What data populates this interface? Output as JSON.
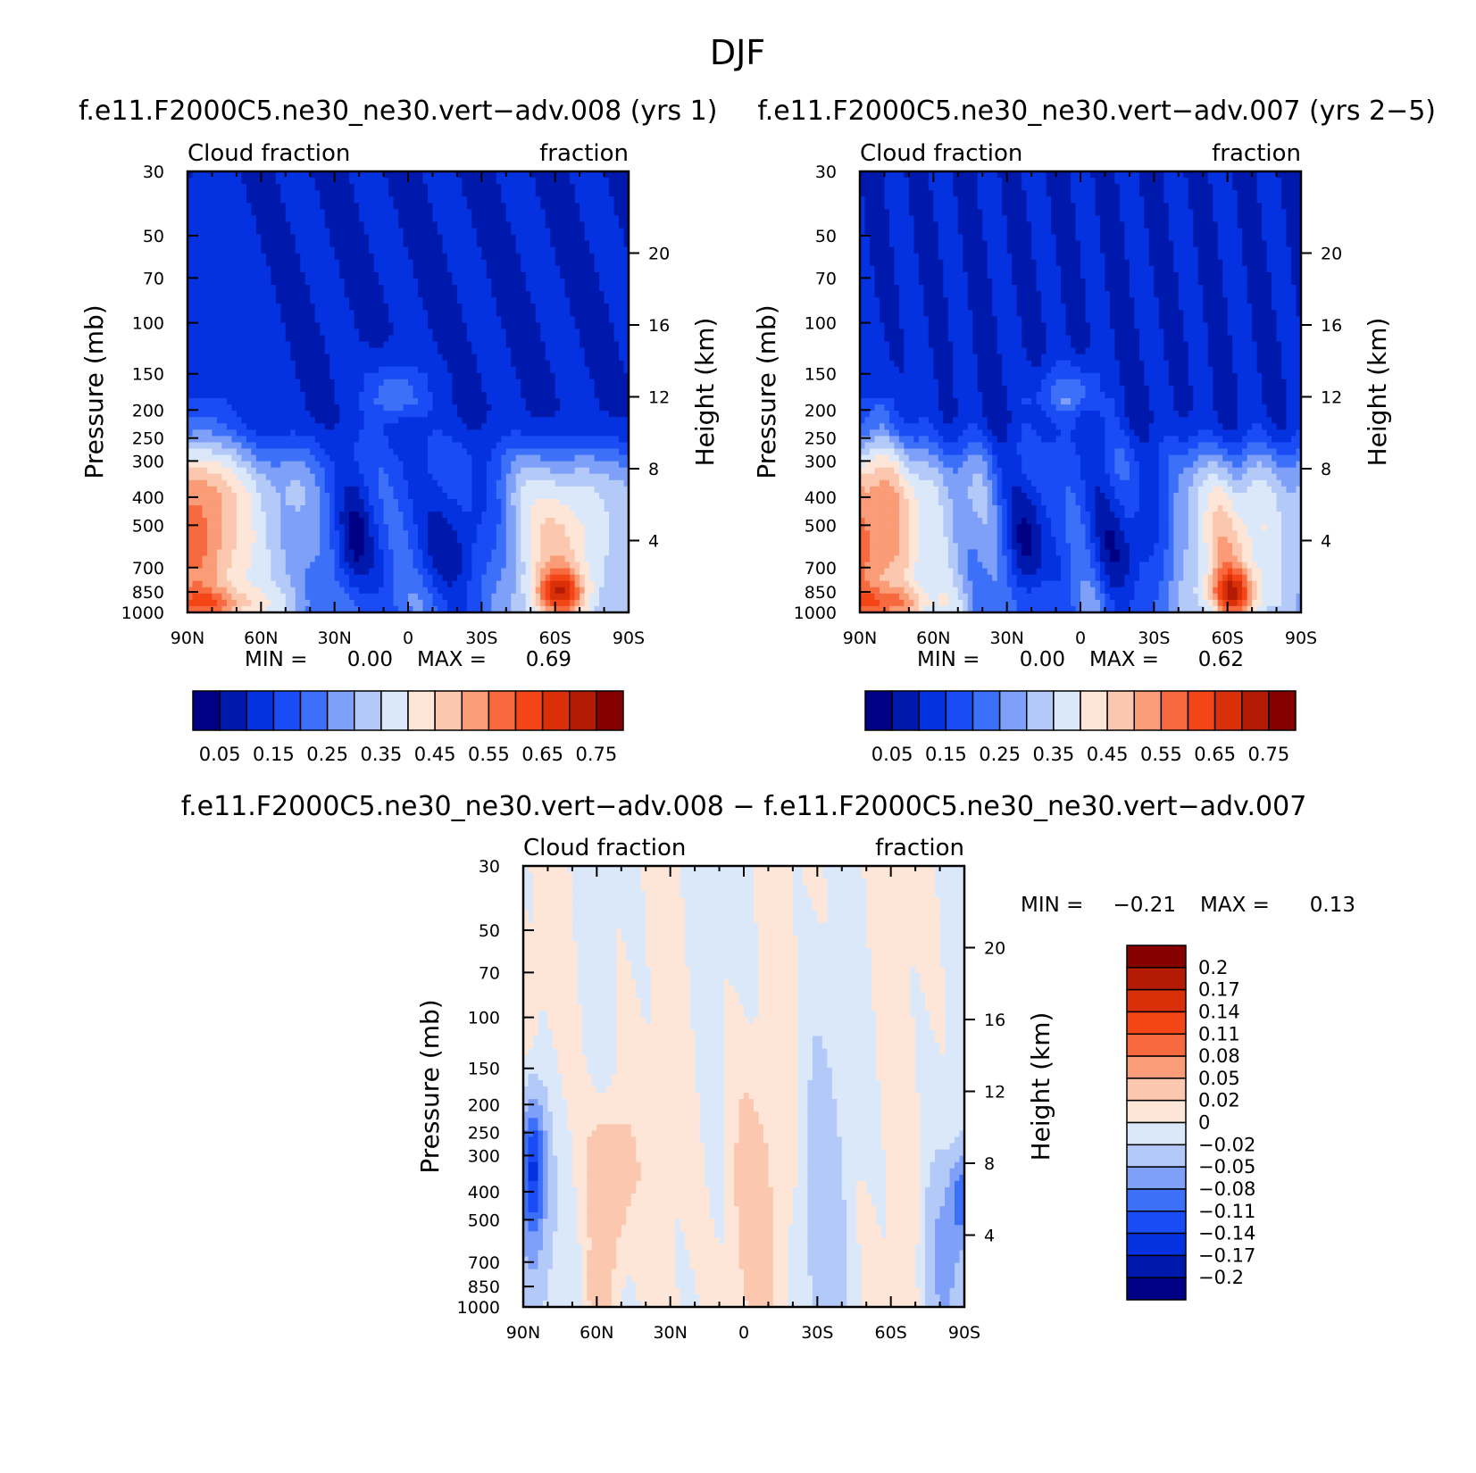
{
  "figure_title": "DJF",
  "chart_data": [
    {
      "type": "heatmap",
      "title": "f.e11.F2000C5.ne30_ne30.vert−adv.008 (yrs 1)",
      "left_string": "Cloud fraction",
      "right_string": "fraction",
      "ylabel": "Pressure (mb)",
      "ylabel_right": "Height (km)",
      "x_ticks": [
        "90N",
        "60N",
        "30N",
        "0",
        "30S",
        "60S",
        "90S"
      ],
      "x_tick_values": [
        90,
        60,
        30,
        0,
        -30,
        -60,
        -90
      ],
      "xlim": [
        90,
        -90
      ],
      "y_ticks": [
        "30",
        "50",
        "70",
        "100",
        "150",
        "200",
        "250",
        "300",
        "400",
        "500",
        "700",
        "850",
        "1000"
      ],
      "y_tick_values": [
        30,
        50,
        70,
        100,
        150,
        200,
        250,
        300,
        400,
        500,
        700,
        850,
        1000
      ],
      "ylim": [
        30,
        1000
      ],
      "height_ticks": [
        "20",
        "16",
        "12",
        "8",
        "4"
      ],
      "height_tick_values": [
        20,
        16,
        12,
        8,
        4
      ],
      "min_label": "MIN =",
      "min_value": "0.00",
      "max_label": "MAX =",
      "max_value": "0.69",
      "colorbar_orientation": "horizontal",
      "colorbar_labels": [
        "0.05",
        "0.15",
        "0.25",
        "0.35",
        "0.45",
        "0.55",
        "0.65",
        "0.75"
      ],
      "colorbar_colors": [
        "#000085",
        "#0019ad",
        "#0532e0",
        "#1a4cf5",
        "#3d70f8",
        "#7ea0f8",
        "#b3c9f8",
        "#dbe8fa",
        "#fde6d8",
        "#fbc7ae",
        "#f99c77",
        "#f76a3f",
        "#f44516",
        "#d93009",
        "#b31b05",
        "#850000"
      ],
      "levels": [
        0.05,
        0.1,
        0.15,
        0.2,
        0.25,
        0.3,
        0.35,
        0.4,
        0.45,
        0.5,
        0.55,
        0.6,
        0.65,
        0.7,
        0.75
      ]
    },
    {
      "type": "heatmap",
      "title": "f.e11.F2000C5.ne30_ne30.vert−adv.007 (yrs 2−5)",
      "left_string": "Cloud fraction",
      "right_string": "fraction",
      "ylabel": "Pressure (mb)",
      "ylabel_right": "Height (km)",
      "x_ticks": [
        "90N",
        "60N",
        "30N",
        "0",
        "30S",
        "60S",
        "90S"
      ],
      "x_tick_values": [
        90,
        60,
        30,
        0,
        -30,
        -60,
        -90
      ],
      "xlim": [
        90,
        -90
      ],
      "y_ticks": [
        "30",
        "50",
        "70",
        "100",
        "150",
        "200",
        "250",
        "300",
        "400",
        "500",
        "700",
        "850",
        "1000"
      ],
      "y_tick_values": [
        30,
        50,
        70,
        100,
        150,
        200,
        250,
        300,
        400,
        500,
        700,
        850,
        1000
      ],
      "ylim": [
        30,
        1000
      ],
      "height_ticks": [
        "20",
        "16",
        "12",
        "8",
        "4"
      ],
      "height_tick_values": [
        20,
        16,
        12,
        8,
        4
      ],
      "min_label": "MIN =",
      "min_value": "0.00",
      "max_label": "MAX =",
      "max_value": "0.62",
      "colorbar_orientation": "horizontal",
      "colorbar_labels": [
        "0.05",
        "0.15",
        "0.25",
        "0.35",
        "0.45",
        "0.55",
        "0.65",
        "0.75"
      ],
      "colorbar_colors": [
        "#000085",
        "#0019ad",
        "#0532e0",
        "#1a4cf5",
        "#3d70f8",
        "#7ea0f8",
        "#b3c9f8",
        "#dbe8fa",
        "#fde6d8",
        "#fbc7ae",
        "#f99c77",
        "#f76a3f",
        "#f44516",
        "#d93009",
        "#b31b05",
        "#850000"
      ],
      "levels": [
        0.05,
        0.1,
        0.15,
        0.2,
        0.25,
        0.3,
        0.35,
        0.4,
        0.45,
        0.5,
        0.55,
        0.6,
        0.65,
        0.7,
        0.75
      ]
    },
    {
      "type": "heatmap",
      "title": "f.e11.F2000C5.ne30_ne30.vert−adv.008 − f.e11.F2000C5.ne30_ne30.vert−adv.007",
      "left_string": "Cloud fraction",
      "right_string": "fraction",
      "ylabel": "Pressure (mb)",
      "ylabel_right": "Height (km)",
      "x_ticks": [
        "90N",
        "60N",
        "30N",
        "0",
        "30S",
        "60S",
        "90S"
      ],
      "x_tick_values": [
        90,
        60,
        30,
        0,
        -30,
        -60,
        -90
      ],
      "xlim": [
        90,
        -90
      ],
      "y_ticks": [
        "30",
        "50",
        "70",
        "100",
        "150",
        "200",
        "250",
        "300",
        "400",
        "500",
        "700",
        "850",
        "1000"
      ],
      "y_tick_values": [
        30,
        50,
        70,
        100,
        150,
        200,
        250,
        300,
        400,
        500,
        700,
        850,
        1000
      ],
      "ylim": [
        30,
        1000
      ],
      "height_ticks": [
        "20",
        "16",
        "12",
        "8",
        "4"
      ],
      "height_tick_values": [
        20,
        16,
        12,
        8,
        4
      ],
      "min_label": "MIN =",
      "min_value": "−0.21",
      "max_label": "MAX =",
      "max_value": "0.13",
      "colorbar_orientation": "vertical",
      "colorbar_labels": [
        "0.2",
        "0.17",
        "0.14",
        "0.11",
        "0.08",
        "0.05",
        "0.02",
        "0",
        "−0.02",
        "−0.05",
        "−0.08",
        "−0.11",
        "−0.14",
        "−0.17",
        "−0.2"
      ],
      "colorbar_colors": [
        "#850000",
        "#b31b05",
        "#d93009",
        "#f44516",
        "#f76a3f",
        "#f99c77",
        "#fbc7ae",
        "#fde6d8",
        "#dbe8fa",
        "#b3c9f8",
        "#7ea0f8",
        "#3d70f8",
        "#1a4cf5",
        "#0532e0",
        "#0019ad",
        "#000085"
      ],
      "levels": [
        -0.2,
        -0.17,
        -0.14,
        -0.11,
        -0.08,
        -0.05,
        -0.02,
        0,
        0.02,
        0.05,
        0.08,
        0.11,
        0.14,
        0.17,
        0.2
      ]
    }
  ]
}
